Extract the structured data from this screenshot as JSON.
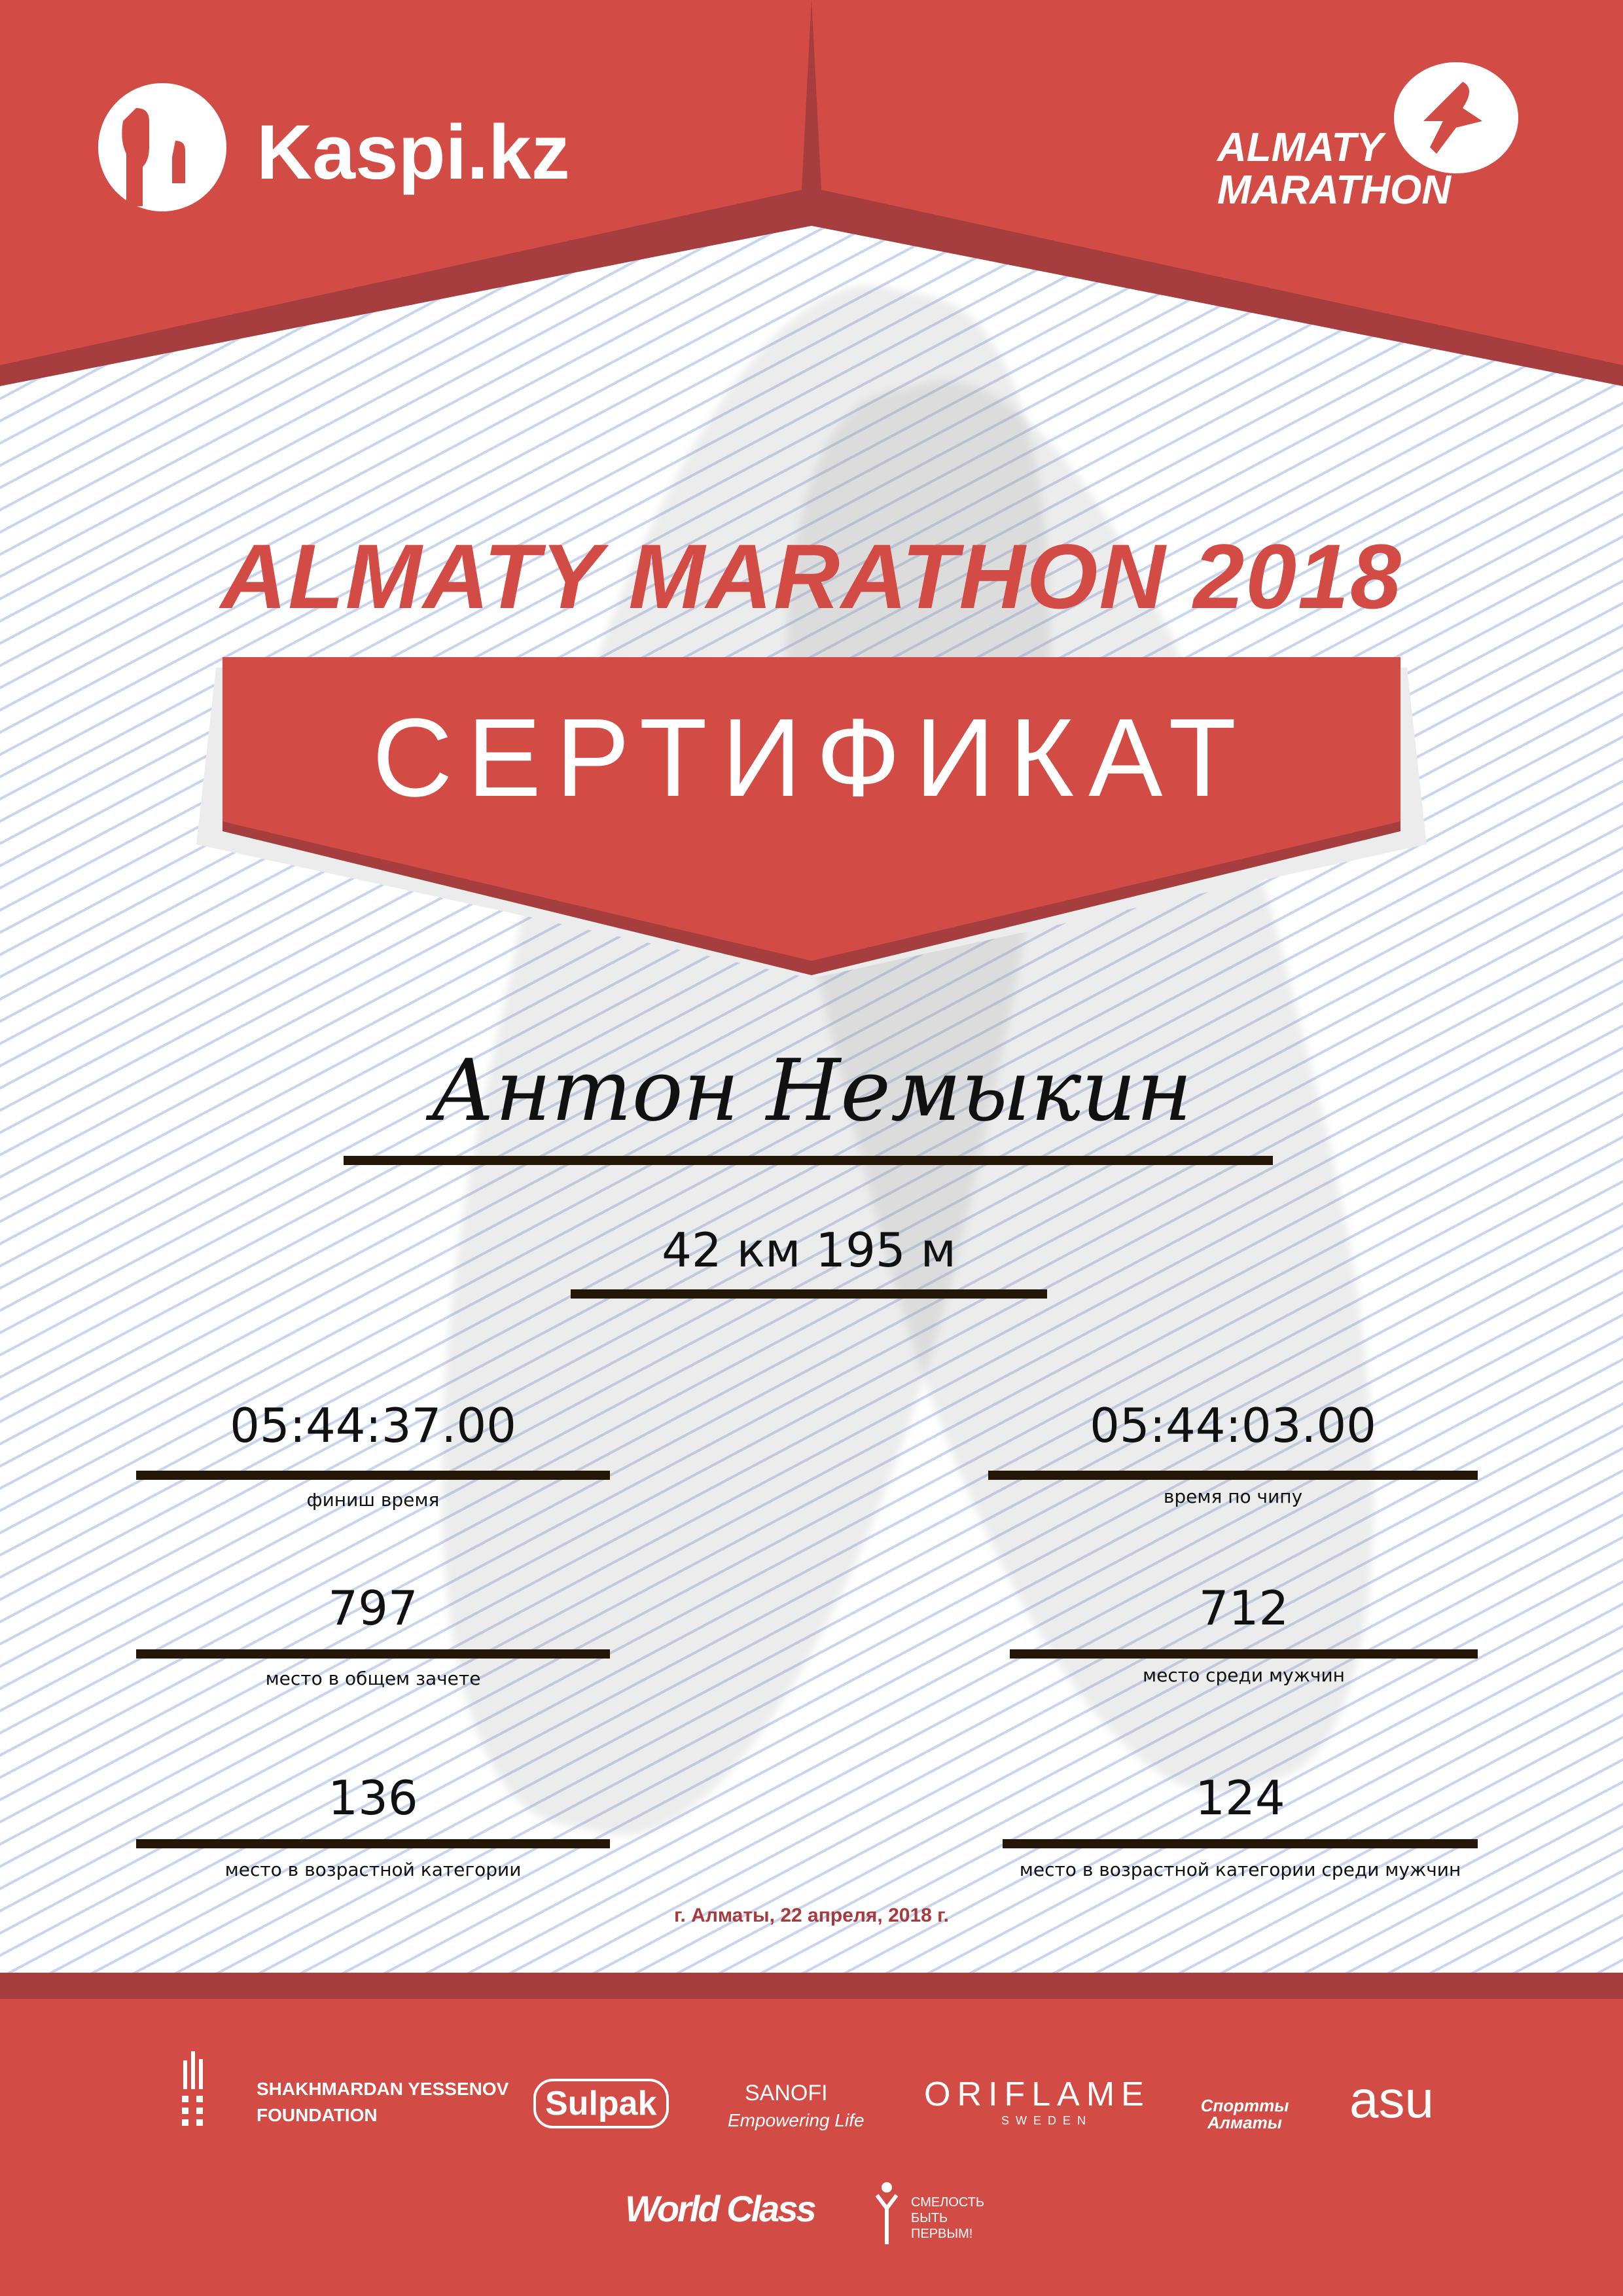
{
  "colors": {
    "brand_red": "#d34b45",
    "dark_red": "#a63e3f",
    "date_red": "#a83a3d",
    "bar": "#241708"
  },
  "header": {
    "left_logo": "Kaspi.kz",
    "right_logo": {
      "line1": "ALMATY",
      "line2": "MARATHON"
    }
  },
  "title": "ALMATY MARATHON 2018",
  "certificate_label": "СЕРТИФИКАТ",
  "participant_name": "Антон Немыкин",
  "distance": "42 км 195 м",
  "results": {
    "finish_time": {
      "value": "05:44:37.00",
      "label": "финиш время"
    },
    "chip_time": {
      "value": "05:44:03.00",
      "label": "время по чипу"
    },
    "overall_place": {
      "value": "797",
      "label": "место в общем зачете"
    },
    "men_place": {
      "value": "712",
      "label": "место среди мужчин"
    },
    "age_place": {
      "value": "136",
      "label": "место в возрастной категории"
    },
    "age_men_place": {
      "value": "124",
      "label": "место в возрастной категории среди мужчин"
    }
  },
  "date": "г. Алматы, 22 апреля, 2018 г.",
  "sponsors": {
    "yessenov": {
      "line1": "SHAKHMARDAN YESSENOV",
      "line2": "FOUNDATION"
    },
    "sulpak": "Sulpak",
    "sanofi": {
      "name": "SANOFI",
      "tagline": "Empowering Life"
    },
    "oriflame": {
      "name": "ORIFLAME",
      "sub": "SWEDEN"
    },
    "sport_almaty": "Спортты Алматы",
    "asu": "asu",
    "worldclass": "World Class",
    "fund": {
      "line1": "СМЕЛОСТЬ",
      "line2": "БЫТЬ",
      "line3": "ПЕРВЫМ!"
    }
  }
}
